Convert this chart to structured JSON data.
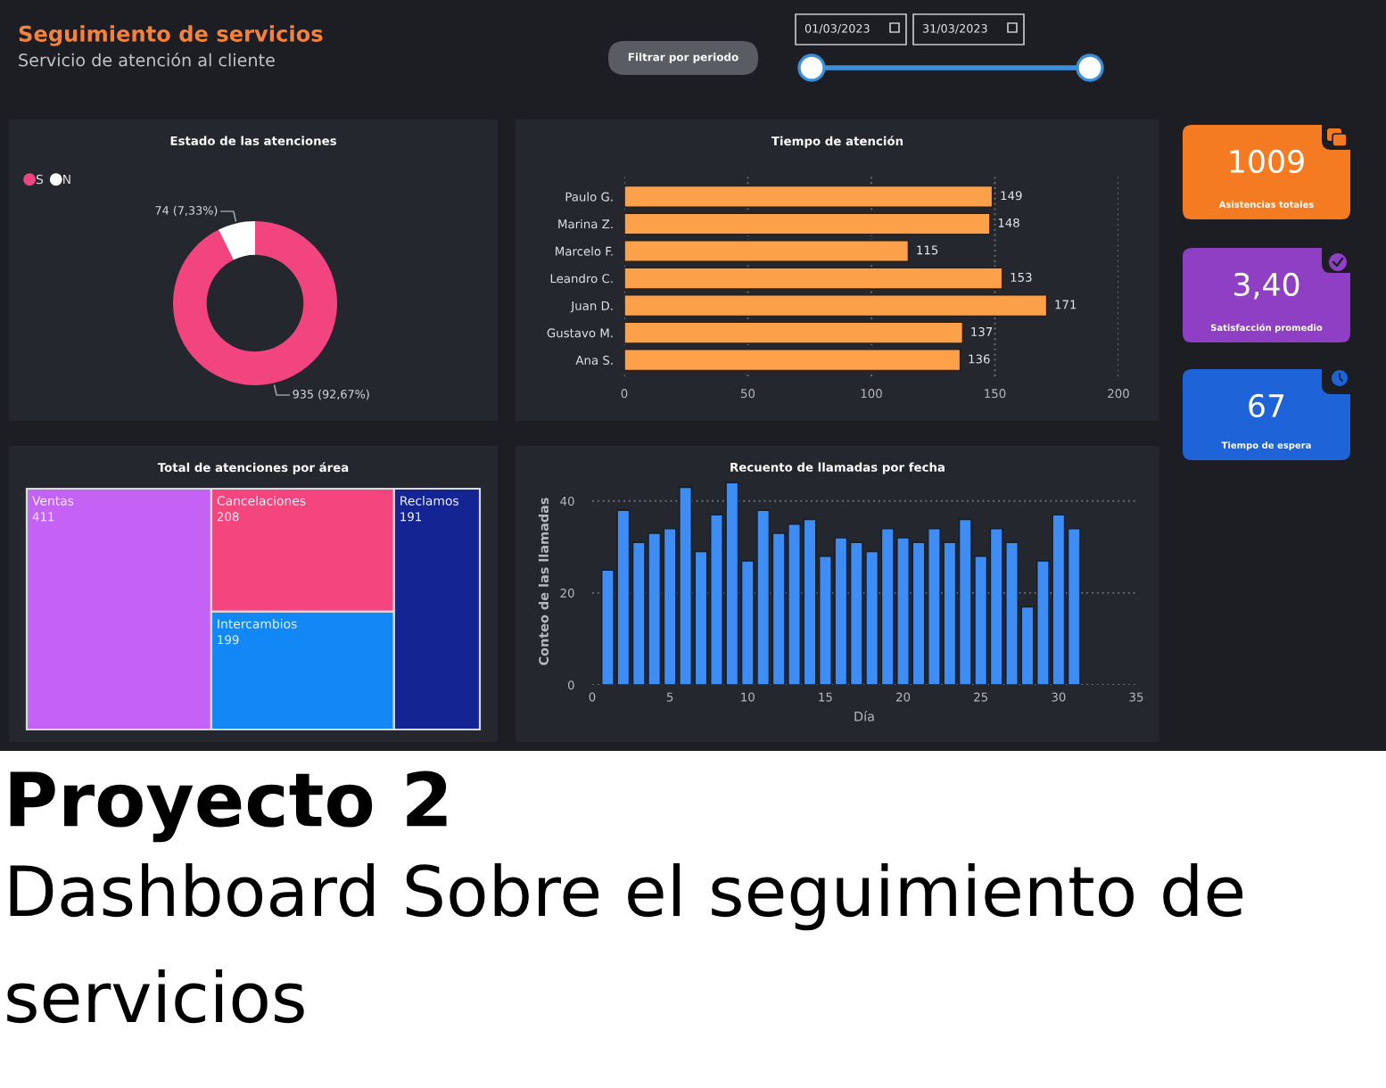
{
  "chart_data": [
    {
      "type": "other",
      "title": "Seguimiento de servicios",
      "subtitle": "Servicio de atención al cliente",
      "annotations": [
        "Filtrar por periodo",
        "01/03/2023",
        "31/03/2023"
      ]
    },
    {
      "type": "donut",
      "title": "Estado de las atenciones",
      "categories": [
        "S",
        "N"
      ],
      "values": [
        935,
        74
      ],
      "colors": [
        "#f2457f",
        "#ffffff"
      ],
      "value_labels": [
        "935 (92,67%)",
        "74 (7,33%)"
      ],
      "legend": "top left"
    },
    {
      "type": "bar",
      "orientation": "horizontal",
      "title": "Tiempo de atención",
      "categories": [
        "Paulo G.",
        "Marina Z.",
        "Marcelo F.",
        "Leandro C.",
        "Juan D.",
        "Gustavo M.",
        "Ana S."
      ],
      "values": [
        149,
        148,
        115,
        153,
        171,
        137,
        136
      ],
      "color": "#fca14a",
      "xlim": [
        0,
        200
      ],
      "xticks": [
        0,
        50,
        100,
        150,
        200
      ],
      "data_labels": true,
      "grid": "x"
    },
    {
      "type": "other",
      "title": "Asistencias totales",
      "annotations": [
        "1009"
      ],
      "color": "#f47b22"
    },
    {
      "type": "other",
      "title": "Satisfacción promedio",
      "annotations": [
        "3,40"
      ],
      "color": "#8e3fc4"
    },
    {
      "type": "other",
      "title": "Tiempo de espera",
      "annotations": [
        "67"
      ],
      "color": "#1f63d8"
    },
    {
      "type": "other",
      "title": "Total de atenciones por área",
      "categories": [
        "Ventas",
        "Cancelaciones",
        "Intercambios",
        "Reclamos"
      ],
      "values": [
        411,
        208,
        199,
        191
      ],
      "colors": [
        "#c462f6",
        "#f4457e",
        "#1287f6",
        "#142493"
      ],
      "data_labels": true
    },
    {
      "type": "bar",
      "title": "Recuento de llamadas por fecha",
      "x": [
        1,
        2,
        3,
        4,
        5,
        6,
        7,
        8,
        9,
        10,
        11,
        12,
        13,
        14,
        15,
        16,
        17,
        18,
        19,
        20,
        21,
        22,
        23,
        24,
        25,
        26,
        27,
        28,
        29,
        30,
        31
      ],
      "values": [
        25,
        38,
        31,
        33,
        34,
        43,
        29,
        37,
        44,
        27,
        38,
        33,
        35,
        36,
        28,
        32,
        31,
        29,
        34,
        32,
        31,
        34,
        31,
        36,
        28,
        34,
        31,
        17,
        27,
        37,
        34
      ],
      "color": "#3d8df5",
      "xlim": [
        0,
        35
      ],
      "xticks": [
        0,
        5,
        10,
        15,
        20,
        25,
        30,
        35
      ],
      "ylim": [
        0,
        45
      ],
      "yticks": [
        0,
        20,
        40
      ],
      "xlabel": "Día",
      "ylabel": "Conteo de las llamadas",
      "grid": "y"
    },
    {
      "type": "other",
      "title": "Proyecto 2",
      "subtitle": "Dashboard Sobre el seguimiento de servicios"
    }
  ]
}
